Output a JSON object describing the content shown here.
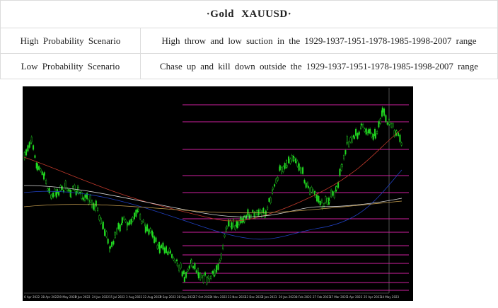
{
  "header": {
    "title": "·Gold XAUUSD·"
  },
  "table": {
    "rows": [
      [
        "High Probability Scenario",
        "High throw and low suction in the 1929-1937-1951-1978-1985-1998-2007 range"
      ],
      [
        "Low Probability Scenario",
        "Chase up and kill down outside the 1929-1937-1951-1978-1985-1998-2007 range"
      ]
    ]
  },
  "chart_image": {
    "x_labels": [
      "6 Apr 2022",
      "28 Apr 2022",
      "19 May 2022",
      "9 Jun 2022",
      "24 Jun 2022",
      "15 Jul 2022",
      "3 Aug 2022",
      "22 Aug 2022",
      "9 Sep 2022",
      "28 Sep 2022",
      "17 Oct 2022",
      "4 Nov 2022",
      "23 Nov 2022",
      "12 Dec 2022",
      "2 Jan 2023",
      "20 Jan 2023",
      "8 Feb 2023",
      "27 Feb 2023",
      "17 Mar 2023",
      "5 Apr 2023",
      "25 Apr 2023",
      "14 May 2023"
    ]
  }
}
